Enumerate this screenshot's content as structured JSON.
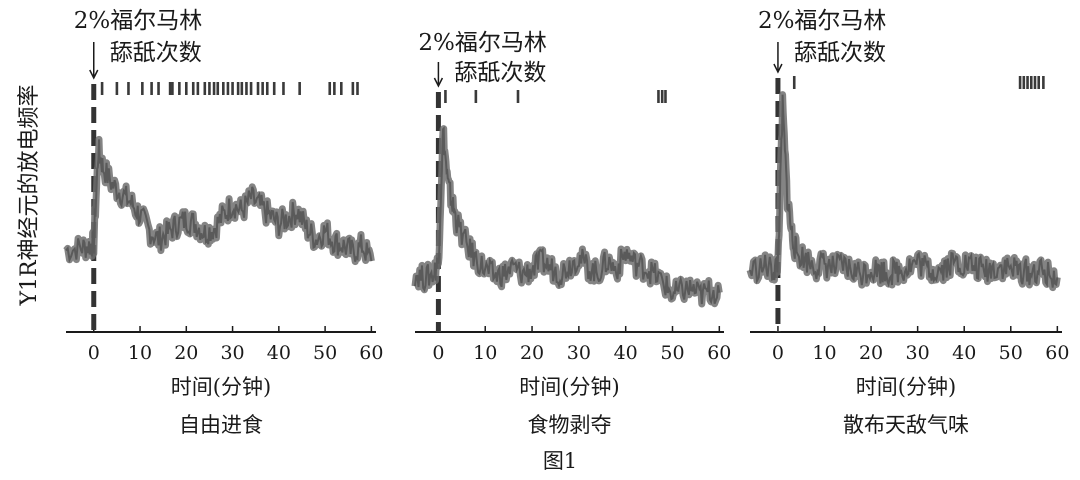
{
  "figure_label": "图1",
  "y_label": "Y1R神经元的放电频率",
  "colors": {
    "trace": "#6f6f6f",
    "marker": "#3a3a3a",
    "axis": "#1a1a1a"
  },
  "chart_data": [
    {
      "type": "line",
      "condition": "自由进食",
      "xlabel": "时间(分钟)",
      "annotation": {
        "line1": "2%福尔马林",
        "line2": "舔舐次数",
        "x": 0
      },
      "x_ticks": [
        0,
        10,
        20,
        30,
        40,
        50,
        60
      ],
      "xlim": [
        -6,
        61
      ],
      "ylim": [
        0,
        1
      ],
      "lick_events": [
        1.8,
        5,
        7.5,
        10.5,
        12.5,
        14,
        16.5,
        17,
        18.5,
        20,
        21.5,
        22.5,
        24,
        25,
        26,
        26.8,
        28,
        29,
        30,
        31.2,
        32,
        33,
        34,
        35.5,
        36.5,
        37.5,
        39,
        41,
        44.5,
        51,
        52,
        53.5,
        56,
        57
      ],
      "series": [
        {
          "values_x": [
            -6,
            -3,
            -1,
            0,
            1,
            2,
            4,
            6,
            8,
            10,
            12,
            14,
            16,
            18,
            20,
            22,
            24,
            26,
            28,
            30,
            32,
            34,
            36,
            38,
            40,
            42,
            44,
            46,
            48,
            50,
            52,
            54,
            56,
            58,
            60
          ],
          "values_y": [
            0.32,
            0.33,
            0.34,
            0.35,
            0.78,
            0.7,
            0.62,
            0.58,
            0.54,
            0.48,
            0.41,
            0.37,
            0.4,
            0.44,
            0.46,
            0.44,
            0.4,
            0.42,
            0.48,
            0.53,
            0.5,
            0.56,
            0.52,
            0.48,
            0.44,
            0.47,
            0.5,
            0.42,
            0.37,
            0.41,
            0.36,
            0.34,
            0.31,
            0.34,
            0.27
          ]
        }
      ]
    },
    {
      "type": "line",
      "condition": "食物剥夺",
      "xlabel": "时间(分钟)",
      "annotation": {
        "line1": "2%福尔马林",
        "line2": "舔舐次数",
        "x": 0
      },
      "x_ticks": [
        0,
        10,
        20,
        30,
        40,
        50,
        60
      ],
      "xlim": [
        -5,
        61
      ],
      "ylim": [
        0,
        1
      ],
      "lick_events": [
        1.5,
        8,
        17,
        47,
        47.8,
        48.5
      ],
      "series": [
        {
          "values_x": [
            -5,
            -3,
            -1,
            0,
            1,
            2,
            3,
            4,
            6,
            8,
            10,
            12,
            14,
            16,
            18,
            20,
            22,
            24,
            26,
            28,
            30,
            32,
            34,
            36,
            38,
            40,
            42,
            44,
            46,
            48,
            50,
            52,
            54,
            56,
            58,
            60
          ],
          "values_y": [
            0.22,
            0.2,
            0.22,
            0.28,
            0.9,
            0.65,
            0.55,
            0.46,
            0.36,
            0.29,
            0.24,
            0.21,
            0.22,
            0.25,
            0.22,
            0.24,
            0.28,
            0.25,
            0.22,
            0.26,
            0.3,
            0.25,
            0.22,
            0.28,
            0.24,
            0.32,
            0.27,
            0.25,
            0.22,
            0.18,
            0.12,
            0.14,
            0.15,
            0.12,
            0.14,
            0.13
          ]
        }
      ]
    },
    {
      "type": "line",
      "condition": "散布天敌气味",
      "xlabel": "时间(分钟)",
      "annotation": {
        "line1": "2%福尔马林",
        "line2": "舔舐次数",
        "x": 0
      },
      "x_ticks": [
        0,
        10,
        20,
        30,
        40,
        50,
        60
      ],
      "xlim": [
        -6,
        61
      ],
      "ylim": [
        0,
        1
      ],
      "lick_events": [
        3.5,
        52,
        52.8,
        53.6,
        54.4,
        55.2,
        56,
        57
      ],
      "series": [
        {
          "values_x": [
            -6,
            -3,
            -1,
            0,
            1,
            2,
            3,
            4,
            6,
            8,
            10,
            12,
            14,
            16,
            18,
            20,
            22,
            24,
            26,
            28,
            30,
            32,
            34,
            36,
            38,
            40,
            42,
            44,
            46,
            48,
            50,
            52,
            54,
            56,
            58,
            60
          ],
          "values_y": [
            0.22,
            0.24,
            0.22,
            0.25,
            0.95,
            0.55,
            0.38,
            0.3,
            0.27,
            0.24,
            0.25,
            0.23,
            0.24,
            0.22,
            0.21,
            0.23,
            0.22,
            0.21,
            0.22,
            0.24,
            0.26,
            0.23,
            0.22,
            0.24,
            0.26,
            0.25,
            0.24,
            0.22,
            0.23,
            0.24,
            0.23,
            0.22,
            0.21,
            0.22,
            0.2,
            0.19
          ]
        }
      ]
    }
  ]
}
